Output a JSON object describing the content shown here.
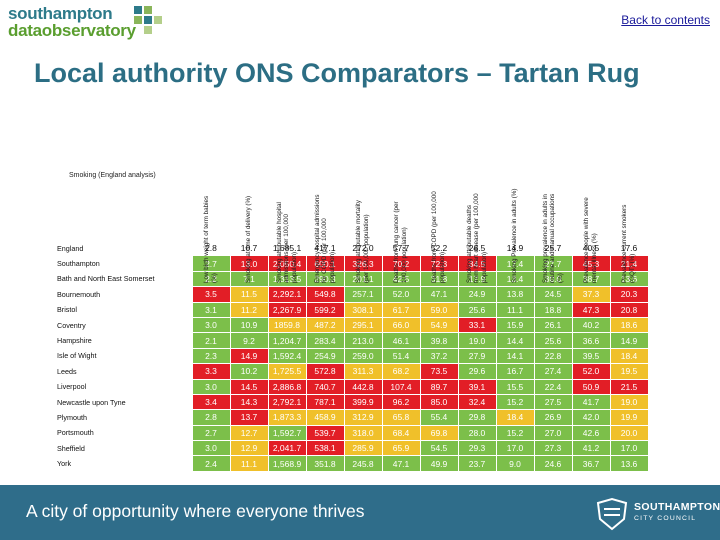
{
  "logo": {
    "line1": "southampton",
    "line2": "dataobservatory",
    "colors": {
      "teal": "#2d7a8a",
      "green": "#5a9e2f"
    }
  },
  "back_link": "Back to contents",
  "title": "Local authority ONS Comparators – Tartan Rug",
  "table": {
    "corner_label": "Smoking (England analysis)",
    "columns": [
      [
        "Low birth weight of term babies",
        "(%)"
      ],
      [
        "Smoking at time of delivery (%)"
      ],
      [
        "Smoking attributable hospital",
        "admissions (per 100,000",
        "population)"
      ],
      [
        "Emergency hospital admissions",
        "for COPD (per 100,000",
        "population)"
      ],
      [
        "Smoking attributable mortality",
        "(per 100,000 population)"
      ],
      [
        "Deaths from lung cancer (per",
        "100,000 population)"
      ],
      [
        "Deaths from COPD (per 100,000",
        "population)"
      ],
      [
        "Smoking attributable deaths",
        "from heart disease (per 100,000",
        "population)"
      ],
      [
        "Smoking Prevalence in adults (%)"
      ],
      [
        "Smoking prevalence in adults in",
        "routine and manual occupations",
        "(%)"
      ],
      [
        "Prevalence people with severe",
        "mental illness (%)"
      ],
      [
        "Prevalence current smokers",
        "(GQT) (%)"
      ]
    ],
    "rows": [
      {
        "area": "England",
        "v": [
          "2.8",
          "10.7",
          "1,685.1",
          "417.1",
          "272.0",
          "57.7",
          "52.2",
          "26.5",
          "14.9",
          "25.7",
          "40.5",
          "17.6"
        ],
        "s": [
          "e",
          "e",
          "e",
          "e",
          "e",
          "e",
          "e",
          "e",
          "e",
          "e",
          "e",
          "e"
        ]
      },
      {
        "area": "Southampton",
        "v": [
          "2.7",
          "13.0",
          "2,050.4",
          "600.1",
          "326.3",
          "70.2",
          "72.3",
          "34.5",
          "17.4",
          "27.7",
          "45.3",
          "21.4"
        ],
        "s": [
          "g",
          "r",
          "r",
          "r",
          "r",
          "r",
          "r",
          "r",
          "g",
          "g",
          "r",
          "r"
        ]
      },
      {
        "area": "Bath and North East Somerset",
        "v": [
          "2.2",
          "7.1",
          "1,313.5",
          "290.3",
          "201.1",
          "42.5",
          "31.8",
          "17.9",
          "13.4",
          "30.0",
          "38.7",
          "13.6"
        ],
        "s": [
          "g",
          "g",
          "g",
          "g",
          "g",
          "g",
          "g",
          "g",
          "g",
          "g",
          "g",
          "g"
        ]
      },
      {
        "area": "Bournemouth",
        "v": [
          "3.5",
          "11.5",
          "2,292.1",
          "549.8",
          "257.1",
          "52.0",
          "47.1",
          "24.9",
          "13.8",
          "24.5",
          "37.3",
          "20.3"
        ],
        "s": [
          "r",
          "a",
          "r",
          "r",
          "g",
          "g",
          "g",
          "g",
          "g",
          "g",
          "a",
          "r"
        ]
      },
      {
        "area": "Bristol",
        "v": [
          "3.1",
          "11.2",
          "2,267.9",
          "599.2",
          "308.1",
          "61.7",
          "59.0",
          "25.6",
          "11.1",
          "18.8",
          "47.3",
          "20.8"
        ],
        "s": [
          "g",
          "a",
          "r",
          "r",
          "a",
          "a",
          "a",
          "g",
          "g",
          "g",
          "r",
          "r"
        ]
      },
      {
        "area": "Coventry",
        "v": [
          "3.0",
          "10.9",
          "1859.8",
          "487.2",
          "295.1",
          "66.0",
          "54.9",
          "33.1",
          "15.9",
          "26.1",
          "40.2",
          "18.6"
        ],
        "s": [
          "g",
          "g",
          "a",
          "a",
          "a",
          "a",
          "a",
          "r",
          "g",
          "g",
          "g",
          "a"
        ]
      },
      {
        "area": "Hampshire",
        "v": [
          "2.1",
          "9.2",
          "1,204.7",
          "283.4",
          "213.0",
          "46.1",
          "39.8",
          "19.0",
          "14.4",
          "25.6",
          "36.6",
          "14.9"
        ],
        "s": [
          "g",
          "g",
          "g",
          "g",
          "g",
          "g",
          "g",
          "g",
          "g",
          "g",
          "g",
          "g"
        ]
      },
      {
        "area": "Isle of Wight",
        "v": [
          "2.3",
          "14.9",
          "1,592.4",
          "254.9",
          "259.0",
          "51.4",
          "37.2",
          "27.9",
          "14.1",
          "22.8",
          "39.5",
          "18.4"
        ],
        "s": [
          "g",
          "r",
          "g",
          "g",
          "g",
          "g",
          "g",
          "g",
          "g",
          "g",
          "g",
          "a"
        ]
      },
      {
        "area": "Leeds",
        "v": [
          "3.3",
          "10.2",
          "1,725.5",
          "572.8",
          "311.3",
          "68.2",
          "73.5",
          "29.6",
          "16.7",
          "27.4",
          "52.0",
          "19.5"
        ],
        "s": [
          "r",
          "g",
          "a",
          "r",
          "a",
          "a",
          "r",
          "g",
          "g",
          "g",
          "r",
          "a"
        ]
      },
      {
        "area": "Liverpool",
        "v": [
          "3.0",
          "14.5",
          "2,886.8",
          "740.7",
          "442.8",
          "107.4",
          "89.7",
          "39.1",
          "15.5",
          "22.4",
          "50.9",
          "21.5"
        ],
        "s": [
          "g",
          "r",
          "r",
          "r",
          "r",
          "r",
          "r",
          "r",
          "g",
          "g",
          "r",
          "r"
        ]
      },
      {
        "area": "Newcastle upon Tyne",
        "v": [
          "3.4",
          "14.3",
          "2,792.1",
          "787.1",
          "399.9",
          "96.2",
          "85.0",
          "32.4",
          "15.2",
          "27.5",
          "41.7",
          "19.0"
        ],
        "s": [
          "r",
          "r",
          "r",
          "r",
          "r",
          "r",
          "r",
          "r",
          "g",
          "g",
          "g",
          "a"
        ]
      },
      {
        "area": "Plymouth",
        "v": [
          "2.8",
          "13.7",
          "1,873.3",
          "458.9",
          "312.9",
          "65.8",
          "55.4",
          "29.8",
          "18.4",
          "26.9",
          "42.0",
          "19.9"
        ],
        "s": [
          "g",
          "r",
          "a",
          "a",
          "a",
          "a",
          "g",
          "g",
          "a",
          "g",
          "g",
          "a"
        ]
      },
      {
        "area": "Portsmouth",
        "v": [
          "2.7",
          "12.7",
          "1,592.7",
          "539.7",
          "318.0",
          "68.4",
          "69.8",
          "28.0",
          "15.2",
          "27.0",
          "42.6",
          "20.0"
        ],
        "s": [
          "g",
          "a",
          "g",
          "r",
          "a",
          "a",
          "a",
          "g",
          "g",
          "g",
          "g",
          "a"
        ]
      },
      {
        "area": "Sheffield",
        "v": [
          "3.0",
          "12.9",
          "2,041.7",
          "538.1",
          "285.9",
          "65.9",
          "54.5",
          "29.3",
          "17.0",
          "27.3",
          "41.2",
          "17.0"
        ],
        "s": [
          "g",
          "a",
          "r",
          "r",
          "a",
          "a",
          "g",
          "g",
          "g",
          "g",
          "g",
          "g"
        ]
      },
      {
        "area": "York",
        "v": [
          "2.4",
          "11.1",
          "1,568.9",
          "351.8",
          "245.8",
          "47.1",
          "49.9",
          "23.7",
          "9.0",
          "24.6",
          "36.7",
          "13.6"
        ],
        "s": [
          "g",
          "a",
          "g",
          "g",
          "g",
          "g",
          "g",
          "g",
          "g",
          "g",
          "g",
          "g"
        ]
      }
    ]
  },
  "status_colors": {
    "g": "#7cbf4a",
    "a": "#f0c02a",
    "r": "#e21e26"
  },
  "footer": {
    "tagline": "A city of opportunity where everyone thrives",
    "brand_line1": "SOUTHAMPTON",
    "brand_line2": "CITY COUNCIL",
    "background": "#2f6d8a"
  }
}
